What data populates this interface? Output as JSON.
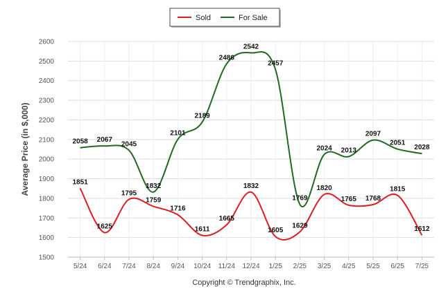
{
  "chart_data": {
    "type": "line",
    "categories": [
      "5/24",
      "6/24",
      "7/24",
      "8/24",
      "9/24",
      "10/24",
      "11/24",
      "12/24",
      "1/25",
      "2/25",
      "3/25",
      "4/25",
      "5/25",
      "6/25",
      "7/25"
    ],
    "series": [
      {
        "name": "Sold",
        "color": "#e41a1c",
        "values": [
          1851,
          1625,
          1795,
          1759,
          1716,
          1611,
          1665,
          1832,
          1605,
          1629,
          1820,
          1765,
          1768,
          1815,
          1612
        ]
      },
      {
        "name": "For Sale",
        "color": "#1e6b1e",
        "values": [
          2058,
          2067,
          2045,
          1832,
          2101,
          2189,
          2486,
          2542,
          2457,
          1769,
          2024,
          2013,
          2097,
          2051,
          2028
        ]
      }
    ],
    "ylabel": "Average Price (in $,000)",
    "ylim": [
      1500,
      2600
    ],
    "yticks": [
      1500,
      1600,
      1700,
      1800,
      1900,
      2000,
      2100,
      2200,
      2300,
      2400,
      2500,
      2600
    ],
    "grid": true,
    "legend": "top-center"
  },
  "credit": "Copyright © Trendgraphix, Inc."
}
